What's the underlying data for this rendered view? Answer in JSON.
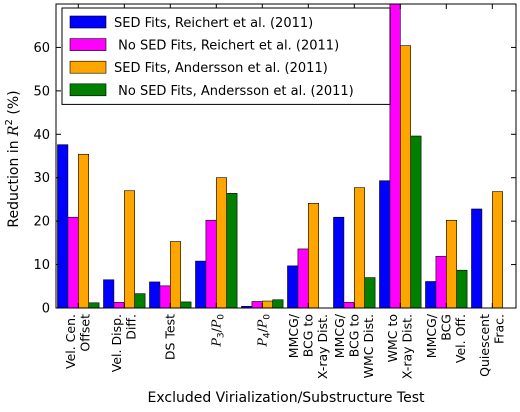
{
  "chart_data": {
    "type": "bar",
    "xlabel": "Excluded Virialization/Substructure Test",
    "ylabel_prefix": "Reduction in ",
    "ylabel_var": "R",
    "ylabel_sup": "2",
    "ylabel_suffix": " (%)",
    "ylim": [
      0,
      70
    ],
    "yticks": [
      "0",
      "10",
      "20",
      "30",
      "40",
      "50",
      "60"
    ],
    "legend_position": "top-left",
    "categories": [
      {
        "lines": [
          "Vel. Cen.",
          "Offset"
        ]
      },
      {
        "lines": [
          "Vel. Disp.",
          "Diff."
        ]
      },
      {
        "lines": [
          "DS Test"
        ]
      },
      {
        "lines": [],
        "math": {
          "a": "P",
          "asub": "3",
          "b": "P",
          "bsub": "0"
        }
      },
      {
        "lines": [],
        "math": {
          "a": "P",
          "asub": "4",
          "b": "P",
          "bsub": "0"
        }
      },
      {
        "lines": [
          "MMCG/",
          "BCG to",
          "X-ray Dist."
        ]
      },
      {
        "lines": [
          "MMCG/",
          "BCG to",
          "WMC Dist."
        ]
      },
      {
        "lines": [
          "WMC to",
          "X-ray Dist."
        ]
      },
      {
        "lines": [
          "MMCG/",
          "BCG",
          "Vel. Off."
        ]
      },
      {
        "lines": [
          "Quiescent",
          "Frac."
        ]
      }
    ],
    "series": [
      {
        "name": "SED Fits, Reichert et al. (2011)",
        "color": "#0000ff",
        "values": [
          37.6,
          6.5,
          6.0,
          10.8,
          0.4,
          9.7,
          20.9,
          29.3,
          6.1,
          22.8
        ]
      },
      {
        "name": " No SED Fits, Reichert et al. (2011)",
        "color": "#ff00ff",
        "values": [
          20.9,
          1.3,
          5.1,
          20.2,
          1.5,
          13.6,
          1.3,
          70,
          11.9,
          null
        ]
      },
      {
        "name": "SED Fits, Andersson et al. (2011)",
        "color": "#ffa500",
        "values": [
          35.4,
          27.0,
          15.3,
          30.0,
          1.6,
          24.1,
          27.7,
          60.4,
          20.2,
          26.8
        ]
      },
      {
        "name": " No SED Fits, Andersson et al. (2011)",
        "color": "#008000",
        "values": [
          1.2,
          3.3,
          1.4,
          26.4,
          1.9,
          null,
          7.0,
          39.6,
          8.7,
          null
        ]
      }
    ]
  }
}
